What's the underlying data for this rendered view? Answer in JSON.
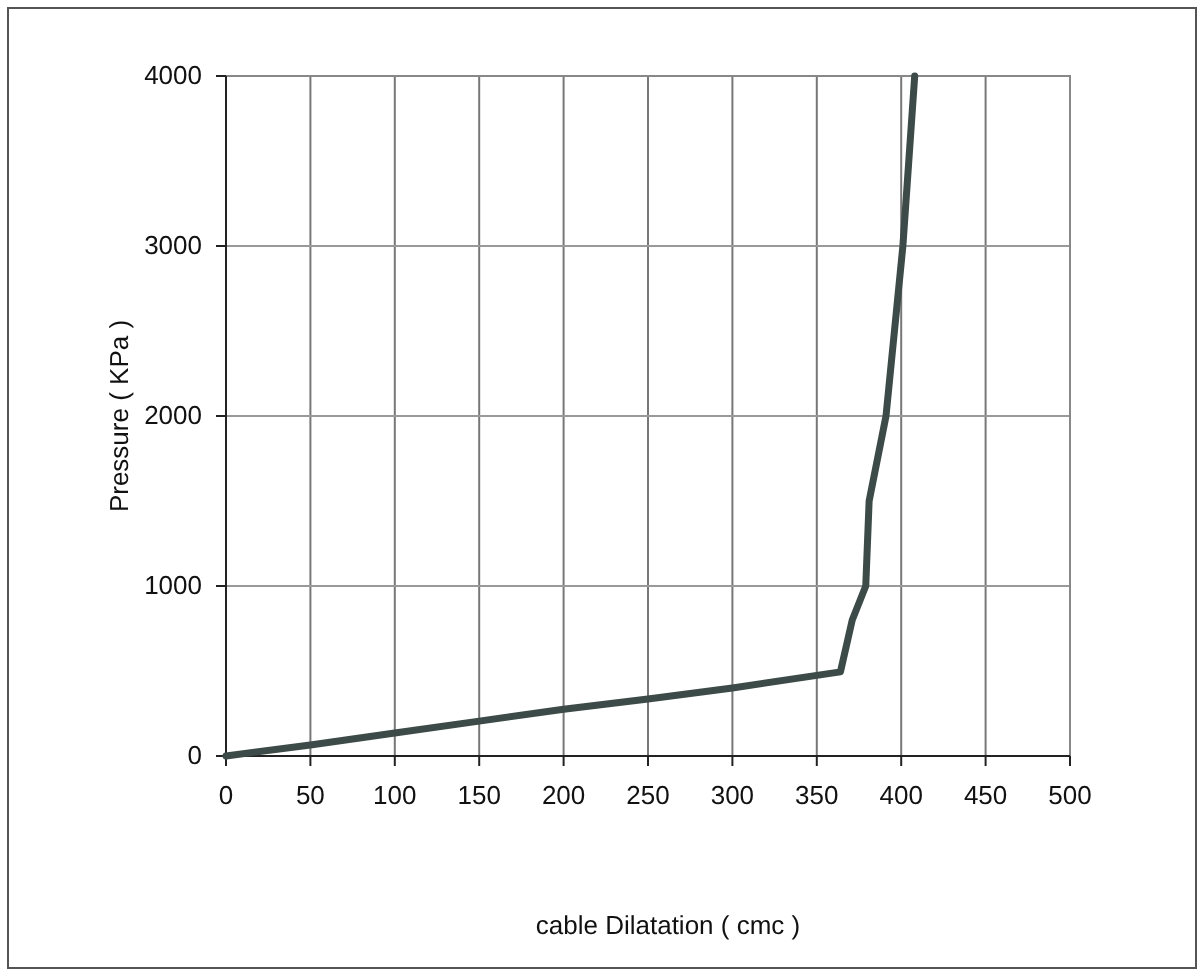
{
  "chart_data": {
    "type": "line",
    "xlabel": "cable Dilatation ( cmc )",
    "ylabel": "Pressure ( KPa )",
    "xlim": [
      0,
      500
    ],
    "xticks": [
      0,
      50,
      100,
      150,
      200,
      250,
      300,
      350,
      400,
      450,
      500
    ],
    "ylim": [
      0,
      4000
    ],
    "yticks": [
      0,
      1000,
      2000,
      3000,
      4000
    ],
    "grid": true,
    "marker": "none",
    "line_style": "solid",
    "series": [
      {
        "color": "#3c4a48",
        "x": [
          0,
          50,
          100,
          150,
          200,
          250,
          300,
          364,
          371,
          379,
          381,
          391,
          401,
          408
        ],
        "values": [
          0,
          65,
          135,
          205,
          275,
          335,
          400,
          495,
          800,
          1000,
          1500,
          2000,
          3000,
          4000
        ]
      }
    ]
  }
}
